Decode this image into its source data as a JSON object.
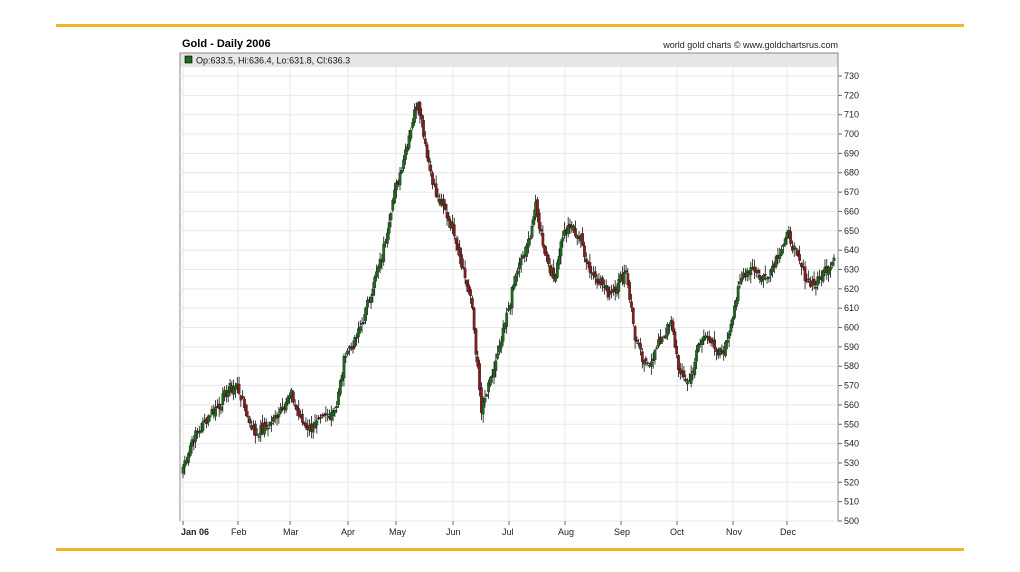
{
  "header": {
    "title": "Gold - Daily 2006",
    "credit": "world gold charts © www.goldchartsrus.com"
  },
  "legend": {
    "text": "Op:633.5, Hi:636.4, Lo:631.8, Cl:636.3"
  },
  "colors": {
    "accent_rule": "#f0b323",
    "up": "#1a6b1a",
    "down": "#8b1a1a",
    "wick": "#111111",
    "grid": "#e8e8e8"
  },
  "chart_data": {
    "type": "candlestick",
    "title": "Gold - Daily 2006",
    "ylim": [
      500,
      730
    ],
    "y_ticks": [
      500,
      510,
      520,
      530,
      540,
      550,
      560,
      570,
      580,
      590,
      600,
      610,
      620,
      630,
      640,
      650,
      660,
      670,
      680,
      690,
      700,
      710,
      720,
      730
    ],
    "y_tick_labels": [
      "500",
      "510",
      "520",
      "530",
      "540",
      "550",
      "560",
      "570",
      "580",
      "590",
      "600",
      "610",
      "620",
      "630",
      "640",
      "650",
      "660",
      "670",
      "680",
      "690",
      "700",
      "710",
      "720",
      "730"
    ],
    "x_tick_labels": [
      "Jan 06",
      "Feb",
      "Mar",
      "Apr",
      "May",
      "Jun",
      "Jul",
      "Aug",
      "Sep",
      "Oct",
      "Nov",
      "Dec"
    ],
    "grid": true,
    "legend_position": "top-left",
    "weekly_close": [
      528,
      542,
      548,
      556,
      560,
      568,
      570,
      556,
      545,
      548,
      552,
      560,
      565,
      552,
      548,
      550,
      555,
      560,
      588,
      592,
      605,
      622,
      636,
      662,
      680,
      700,
      718,
      690,
      668,
      660,
      650,
      630,
      610,
      556,
      572,
      588,
      610,
      630,
      640,
      662,
      640,
      625,
      648,
      652,
      645,
      630,
      625,
      618,
      622,
      630,
      595,
      580,
      585,
      595,
      602,
      575,
      572,
      590,
      598,
      585,
      590,
      612,
      628,
      632,
      625,
      630,
      640,
      648,
      635,
      625,
      622,
      630,
      636
    ]
  }
}
